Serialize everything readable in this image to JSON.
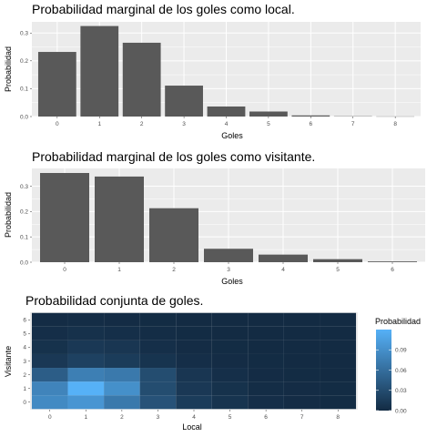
{
  "colors": {
    "panel": "#ebebeb",
    "grid_major": "#ffffff",
    "bar_fill": "#595959",
    "tick_text": "#4d4d4d",
    "heat_low": "#132b43",
    "heat_high": "#56b1f7"
  },
  "chart_data": [
    {
      "type": "bar",
      "title": "Probabilidad marginal de los goles como local.",
      "xlabel": "Goles",
      "ylabel": "Probabilidad",
      "categories": [
        "0",
        "1",
        "2",
        "3",
        "4",
        "5",
        "6",
        "7",
        "8"
      ],
      "values": [
        0.232,
        0.325,
        0.265,
        0.111,
        0.036,
        0.018,
        0.004,
        0.001,
        0.0005
      ],
      "yticks": [
        0.0,
        0.1,
        0.2,
        0.3
      ],
      "ytick_labels": [
        "0.0",
        "0.1",
        "0.2",
        "0.3"
      ],
      "ylim": [
        0,
        0.34
      ],
      "grid": true,
      "legend": "none"
    },
    {
      "type": "bar",
      "title": "Probabilidad marginal de los goles como visitante.",
      "xlabel": "Goles",
      "ylabel": "Probabilidad",
      "categories": [
        "0",
        "1",
        "2",
        "3",
        "4",
        "5",
        "6"
      ],
      "values": [
        0.352,
        0.338,
        0.213,
        0.053,
        0.03,
        0.012,
        0.003
      ],
      "yticks": [
        0.0,
        0.1,
        0.2,
        0.3
      ],
      "ytick_labels": [
        "0.0",
        "0.1",
        "0.2",
        "0.3"
      ],
      "ylim": [
        0,
        0.37
      ],
      "grid": true,
      "legend": "none"
    },
    {
      "type": "heatmap",
      "title": "Probabilidad conjunta de goles.",
      "xlabel": "Local",
      "ylabel": "Visitante",
      "x_categories": [
        "0",
        "1",
        "2",
        "3",
        "4",
        "5",
        "6",
        "7",
        "8"
      ],
      "y_categories": [
        "0",
        "1",
        "2",
        "3",
        "4",
        "5",
        "6"
      ],
      "values": [
        [
          0.085,
          0.095,
          0.07,
          0.035,
          0.015,
          0.008,
          0.003,
          0.001,
          0.0005
        ],
        [
          0.08,
          0.12,
          0.09,
          0.03,
          0.012,
          0.006,
          0.002,
          0.001,
          0.0005
        ],
        [
          0.045,
          0.075,
          0.07,
          0.03,
          0.01,
          0.004,
          0.001,
          0.0005,
          0.0002
        ],
        [
          0.012,
          0.02,
          0.015,
          0.008,
          0.003,
          0.001,
          0.0005,
          0.0002,
          0.0001
        ],
        [
          0.006,
          0.012,
          0.01,
          0.004,
          0.001,
          0.0005,
          0.0002,
          0.0001,
          0.0
        ],
        [
          0.003,
          0.005,
          0.004,
          0.002,
          0.0005,
          0.0002,
          0.0001,
          0.0,
          0.0
        ],
        [
          0.001,
          0.002,
          0.001,
          0.0005,
          0.0002,
          0.0001,
          0.0,
          0.0,
          0.0
        ]
      ],
      "color_scale": {
        "min": 0.0,
        "max": 0.12,
        "low": "#132b43",
        "high": "#56b1f7",
        "ticks": [
          0.0,
          0.03,
          0.06,
          0.09
        ],
        "tick_labels": [
          "0.00",
          "0.03",
          "0.06",
          "0.09"
        ]
      },
      "legend_title": "Probabilidad",
      "legend": "right"
    }
  ]
}
